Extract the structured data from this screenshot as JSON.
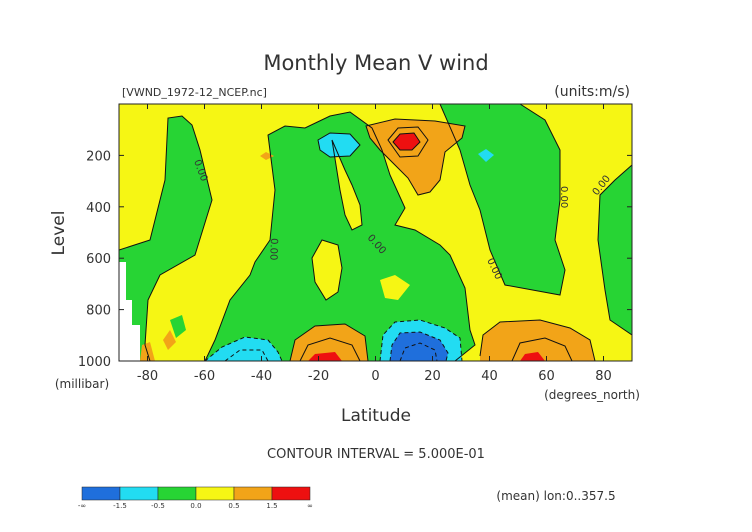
{
  "chart_data": {
    "type": "contour",
    "title": "Monthly Mean V wind",
    "source_label": "[VWND_1972-12_NCEP.nc]",
    "units_label": "(units:m/s)",
    "xlabel": "Latitude",
    "xunit_label": "(degrees_north)",
    "ylabel": "Level",
    "yunit_label": "(millibar)",
    "xlim": [
      -90,
      90
    ],
    "ylim": [
      1000,
      0
    ],
    "x_ticks": [
      -80,
      -60,
      -40,
      -20,
      0,
      20,
      40,
      60,
      80
    ],
    "y_ticks": [
      200,
      400,
      600,
      800,
      1000
    ],
    "contour_interval_text": "CONTOUR INTERVAL = 5.000E-01",
    "mean_note": "(mean) lon:0..357.5",
    "zero_contour_label": "0.00",
    "colorbar": {
      "labels": [
        "-∞",
        "-1.5",
        "-0.5",
        "0.0",
        "0.5",
        "1.5",
        "∞"
      ],
      "colors": [
        "#1f6fdc",
        "#22dcf2",
        "#27d434",
        "#f6f614",
        "#f2a418",
        "#ee1010"
      ]
    }
  }
}
